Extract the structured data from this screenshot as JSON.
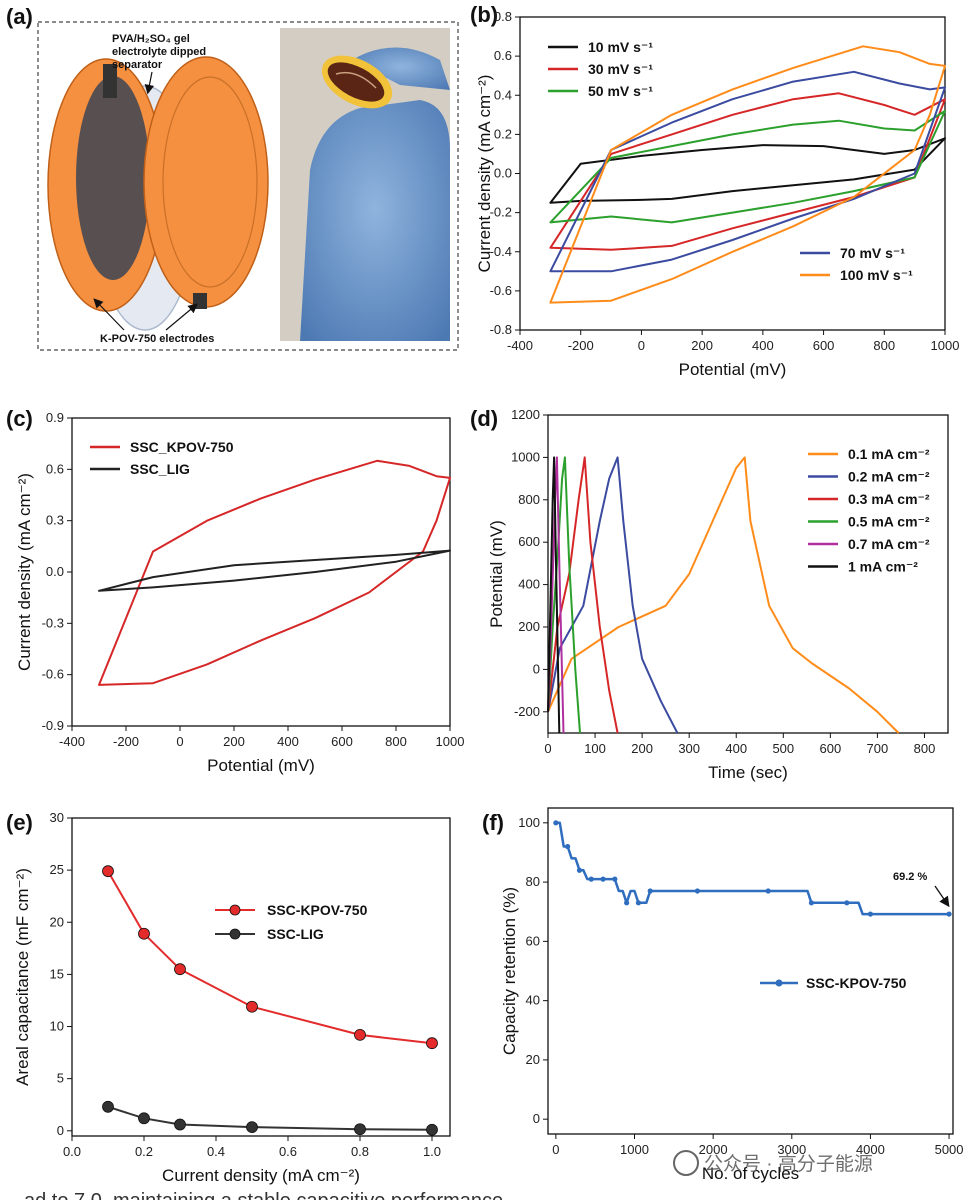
{
  "watermark": "公众号 · 高分子能源",
  "footer_fragment": "ad to 7,0, maintaining a stable capacitive performance",
  "panel_a": {
    "label": "(a)",
    "gel_label_1": "PVA/H₂SO₄ gel",
    "gel_label_2": "electrolyte dipped",
    "gel_label_3": "separator",
    "electrode_label": "K-POV-750 electrodes"
  },
  "chart_data": [
    {
      "id": "b",
      "label": "(b)",
      "type": "line",
      "xlabel": "Potential (mV)",
      "ylabel": "Current density (mA cm⁻²)",
      "xlim": [
        -400,
        1000
      ],
      "ylim": [
        -0.8,
        0.8
      ],
      "xticks": [
        -400,
        -200,
        0,
        200,
        400,
        600,
        800,
        1000
      ],
      "yticks": [
        -0.8,
        -0.6,
        -0.4,
        -0.2,
        0.0,
        0.2,
        0.4,
        0.6,
        0.8
      ],
      "ytick_labels": [
        "-0.8",
        "-0.6",
        "-0.4",
        "-0.2",
        "0.0",
        "0.2",
        "0.4",
        "0.6",
        "0.8"
      ],
      "legend": [
        [
          "10 mV s⁻¹",
          "30 mV s⁻¹",
          "50 mV s⁻¹"
        ],
        [
          "70 mV s⁻¹",
          "100 mV s⁻¹"
        ]
      ],
      "series": [
        {
          "name": "10 mV s⁻¹",
          "color": "#111111",
          "x": [
            -300,
            -200,
            0,
            200,
            400,
            600,
            800,
            900,
            1000,
            900,
            700,
            500,
            300,
            100,
            0,
            -200,
            -300
          ],
          "y": [
            -0.15,
            0.05,
            0.09,
            0.12,
            0.145,
            0.14,
            0.1,
            0.12,
            0.18,
            0.02,
            -0.03,
            -0.06,
            -0.09,
            -0.13,
            -0.135,
            -0.14,
            -0.15
          ]
        },
        {
          "name": "30 mV s⁻¹",
          "color": "#d62728",
          "x": [
            -300,
            -100,
            100,
            300,
            500,
            650,
            800,
            900,
            1000,
            900,
            700,
            500,
            300,
            100,
            -100,
            -300
          ],
          "y": [
            -0.38,
            0.1,
            0.2,
            0.3,
            0.38,
            0.41,
            0.35,
            0.3,
            0.38,
            -0.02,
            -0.12,
            -0.2,
            -0.28,
            -0.37,
            -0.39,
            -0.38
          ]
        },
        {
          "name": "50 mV s⁻¹",
          "color": "#2ca02c",
          "x": [
            -300,
            -100,
            100,
            300,
            500,
            650,
            800,
            900,
            1000,
            900,
            700,
            500,
            300,
            100,
            -100,
            -300
          ],
          "y": [
            -0.25,
            0.08,
            0.14,
            0.2,
            0.25,
            0.27,
            0.23,
            0.22,
            0.32,
            -0.02,
            -0.09,
            -0.15,
            -0.2,
            -0.25,
            -0.22,
            -0.25
          ]
        },
        {
          "name": "70 mV s⁻¹",
          "color": "#3b4ba0",
          "x": [
            -300,
            -100,
            100,
            300,
            500,
            700,
            850,
            950,
            1000,
            900,
            700,
            500,
            300,
            100,
            -100,
            -300
          ],
          "y": [
            -0.5,
            0.12,
            0.26,
            0.38,
            0.47,
            0.52,
            0.46,
            0.43,
            0.44,
            0.0,
            -0.13,
            -0.23,
            -0.34,
            -0.44,
            -0.5,
            -0.5
          ]
        },
        {
          "name": "100 mV s⁻¹",
          "color": "#ff8c1a",
          "x": [
            -300,
            -100,
            100,
            300,
            500,
            730,
            850,
            950,
            1000,
            950,
            900,
            700,
            500,
            300,
            100,
            -100,
            -300
          ],
          "y": [
            -0.66,
            0.12,
            0.3,
            0.43,
            0.54,
            0.65,
            0.62,
            0.56,
            0.55,
            0.3,
            0.12,
            -0.12,
            -0.27,
            -0.4,
            -0.54,
            -0.65,
            -0.66
          ]
        }
      ]
    },
    {
      "id": "c",
      "label": "(c)",
      "type": "line",
      "xlabel": "Potential (mV)",
      "ylabel": "Current density (mA cm⁻²)",
      "xlim": [
        -400,
        1000
      ],
      "ylim": [
        -0.9,
        0.9
      ],
      "xticks": [
        -400,
        -200,
        0,
        200,
        400,
        600,
        800,
        1000
      ],
      "yticks": [
        -0.9,
        -0.6,
        -0.3,
        0.0,
        0.3,
        0.6,
        0.9
      ],
      "ytick_labels": [
        "-0.9",
        "-0.6",
        "-0.3",
        "0.0",
        "0.3",
        "0.6",
        "0.9"
      ],
      "legend": [
        "SSC_KPOV-750",
        "SSC_LIG"
      ],
      "series": [
        {
          "name": "SSC_KPOV-750",
          "color": "#d62728",
          "x": [
            -300,
            -100,
            100,
            300,
            500,
            730,
            850,
            950,
            1000,
            950,
            900,
            700,
            500,
            300,
            100,
            -100,
            -300
          ],
          "y": [
            -0.66,
            0.12,
            0.3,
            0.43,
            0.54,
            0.65,
            0.62,
            0.56,
            0.55,
            0.3,
            0.12,
            -0.12,
            -0.27,
            -0.4,
            -0.54,
            -0.65,
            -0.66
          ]
        },
        {
          "name": "SSC_LIG",
          "color": "#222222",
          "x": [
            -300,
            -100,
            200,
            500,
            800,
            1000,
            800,
            500,
            200,
            -100,
            -300
          ],
          "y": [
            -0.11,
            -0.03,
            0.04,
            0.07,
            0.1,
            0.125,
            0.06,
            0.0,
            -0.05,
            -0.09,
            -0.11
          ]
        }
      ]
    },
    {
      "id": "d",
      "label": "(d)",
      "type": "line",
      "xlabel": "Time (sec)",
      "ylabel": "Potential (mV)",
      "xlim": [
        0,
        850
      ],
      "ylim": [
        -300,
        1200
      ],
      "xticks": [
        0,
        100,
        200,
        300,
        400,
        500,
        600,
        700,
        800
      ],
      "yticks": [
        -200,
        0,
        200,
        400,
        600,
        800,
        1000,
        1200
      ],
      "ytick_labels": [
        "-200",
        "0",
        "200",
        "400",
        "600",
        "800",
        "1000",
        "1200"
      ],
      "legend": [
        "0.1 mA cm⁻²",
        "0.2 mA cm⁻²",
        "0.3 mA cm⁻²",
        "0.5 mA cm⁻²",
        "0.7 mA cm⁻²",
        "1 mA cm⁻²"
      ],
      "series": [
        {
          "name": "0.1 mA cm⁻²",
          "color": "#ff8c1a",
          "x": [
            0,
            50,
            150,
            250,
            300,
            350,
            400,
            418,
            430,
            470,
            520,
            560,
            640,
            700,
            745
          ],
          "y": [
            -200,
            50,
            200,
            300,
            450,
            700,
            950,
            1000,
            700,
            300,
            100,
            30,
            -90,
            -200,
            -300
          ]
        },
        {
          "name": "0.2 mA cm⁻²",
          "color": "#3b4ba0",
          "x": [
            0,
            25,
            75,
            110,
            130,
            148,
            160,
            180,
            200,
            240,
            275
          ],
          "y": [
            -200,
            100,
            300,
            700,
            900,
            1000,
            700,
            300,
            50,
            -150,
            -300
          ]
        },
        {
          "name": "0.3 mA cm⁻²",
          "color": "#d62728",
          "x": [
            0,
            20,
            45,
            65,
            78,
            90,
            110,
            130,
            148
          ],
          "y": [
            -200,
            200,
            450,
            800,
            1000,
            600,
            200,
            -100,
            -300
          ]
        },
        {
          "name": "0.5 mA cm⁻²",
          "color": "#2ca02c",
          "x": [
            0,
            10,
            22,
            30,
            36,
            45,
            58,
            68
          ],
          "y": [
            -200,
            200,
            600,
            900,
            1000,
            500,
            0,
            -300
          ]
        },
        {
          "name": "0.7 mA cm⁻²",
          "color": "#b0309f",
          "x": [
            0,
            8,
            15,
            19,
            24,
            33
          ],
          "y": [
            -200,
            300,
            800,
            1000,
            500,
            -300
          ]
        },
        {
          "name": "1 mA cm⁻²",
          "color": "#111111",
          "x": [
            0,
            5,
            10,
            13,
            17,
            24
          ],
          "y": [
            -200,
            300,
            800,
            1000,
            500,
            -300
          ]
        }
      ]
    },
    {
      "id": "e",
      "label": "(e)",
      "type": "line",
      "xlabel": "Current density (mA cm⁻²)",
      "ylabel": "Areal capacitance (mF cm⁻²)",
      "xlim": [
        0.0,
        1.05
      ],
      "ylim": [
        -0.5,
        30
      ],
      "xticks": [
        0.0,
        0.2,
        0.4,
        0.6,
        0.8,
        1.0
      ],
      "xtick_labels": [
        "0.0",
        "0.2",
        "0.4",
        "0.6",
        "0.8",
        "1.0"
      ],
      "yticks": [
        0,
        5,
        10,
        15,
        20,
        25,
        30
      ],
      "ytick_labels": [
        "0",
        "5",
        "10",
        "15",
        "20",
        "25",
        "30"
      ],
      "legend": [
        "SSC-KPOV-750",
        "SSC-LIG"
      ],
      "series": [
        {
          "name": "SSC-KPOV-750",
          "color": "#e32b2b",
          "x": [
            0.1,
            0.2,
            0.3,
            0.5,
            0.8,
            1.0
          ],
          "y": [
            24.9,
            18.9,
            15.5,
            11.9,
            9.2,
            8.4
          ]
        },
        {
          "name": "SSC-LIG",
          "color": "#333333",
          "x": [
            0.1,
            0.2,
            0.3,
            0.5,
            0.8,
            1.0
          ],
          "y": [
            2.3,
            1.2,
            0.6,
            0.35,
            0.15,
            0.1
          ]
        }
      ]
    },
    {
      "id": "f",
      "label": "(f)",
      "type": "line",
      "xlabel": "No. of cycles",
      "ylabel": "Capacity retention (%)",
      "xlim": [
        -100,
        5050
      ],
      "ylim": [
        -5,
        105
      ],
      "xticks": [
        0,
        1000,
        2000,
        3000,
        4000,
        5000
      ],
      "yticks": [
        0,
        20,
        40,
        60,
        80,
        100
      ],
      "ytick_labels": [
        "0",
        "20",
        "40",
        "60",
        "80",
        "100"
      ],
      "legend": [
        "SSC-KPOV-750"
      ],
      "annotation": "69.2 %",
      "series": [
        {
          "name": "SSC-KPOV-750",
          "color": "#2f6dbf",
          "x": [
            0,
            50,
            100,
            150,
            200,
            250,
            300,
            350,
            400,
            450,
            500,
            550,
            600,
            650,
            700,
            750,
            800,
            850,
            900,
            950,
            1000,
            1050,
            1100,
            1150,
            1200,
            1300,
            1500,
            1800,
            2100,
            2400,
            2700,
            3000,
            3200,
            3250,
            3300,
            3500,
            3700,
            3850,
            3900,
            4000,
            4300,
            4600,
            5000
          ],
          "y": [
            100,
            100,
            92,
            92,
            88,
            88,
            84,
            84,
            81,
            81,
            81,
            81,
            81,
            81,
            81,
            81,
            77,
            77,
            73,
            77,
            77,
            73,
            73,
            73,
            77,
            77,
            77,
            77,
            77,
            77,
            77,
            77,
            77,
            73,
            73,
            73,
            73,
            73,
            69.2,
            69.2,
            69.2,
            69.2,
            69.2
          ]
        }
      ]
    }
  ]
}
